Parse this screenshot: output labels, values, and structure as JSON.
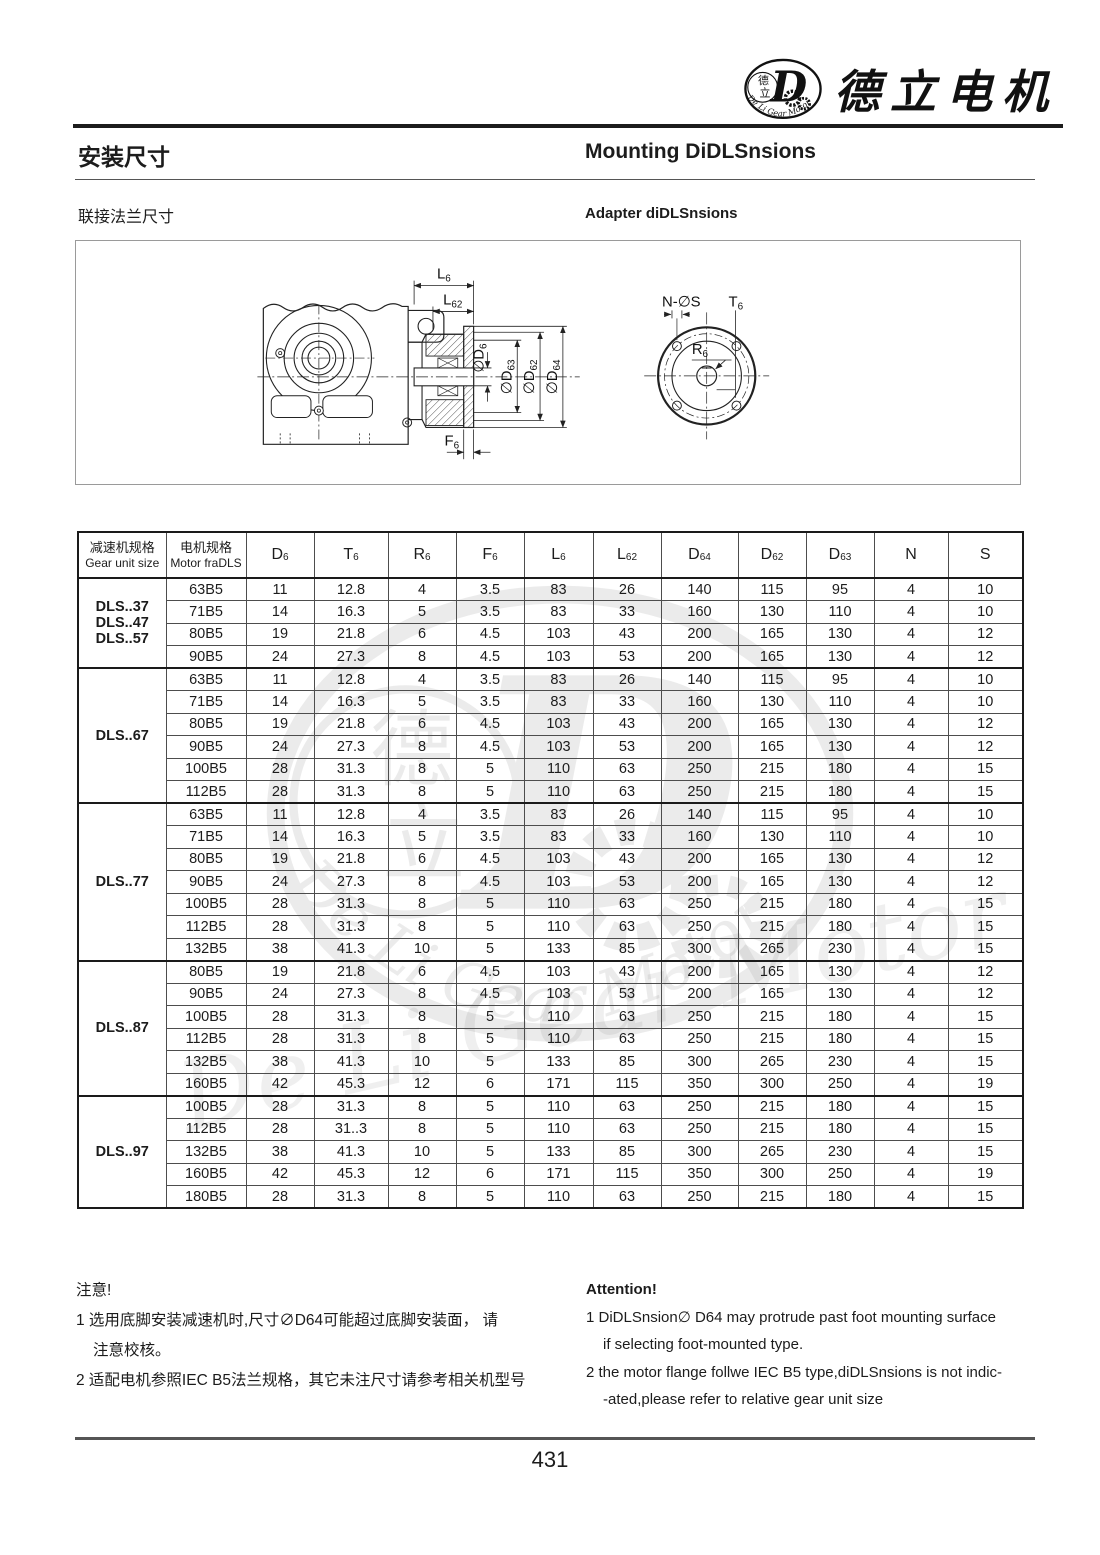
{
  "page": {
    "brand_name": "德立电机",
    "logo": {
      "char_top": "德",
      "char_bottom": "立",
      "letter": "D",
      "ring_text": "De Li Gear Motor"
    },
    "title_cn": "安装尺寸",
    "title_en": "Mounting DiDLSnsions",
    "subtitle_cn": "联接法兰尺寸",
    "subtitle_en": "Adapter diDLSnsions",
    "page_number": "431"
  },
  "drawing": {
    "side_view": {
      "l6": {
        "base": "L",
        "sub": "6"
      },
      "l62": {
        "base": "L",
        "sub": "62"
      },
      "d6": {
        "base": "∅D",
        "sub": "6"
      },
      "d63": {
        "base": "∅D",
        "sub": "63"
      },
      "d62": {
        "base": "∅D",
        "sub": "62"
      },
      "d64": {
        "base": "∅D",
        "sub": "64"
      },
      "f6": {
        "base": "F",
        "sub": "6"
      }
    },
    "front_view": {
      "n_os": {
        "base": "N-∅S",
        "sub": ""
      },
      "t6": {
        "base": "T",
        "sub": "6"
      },
      "r6": {
        "base": "R",
        "sub": "6"
      }
    }
  },
  "table": {
    "col1_header": {
      "cn": "减速机规格",
      "en": "Gear unit size"
    },
    "col2_header": {
      "cn": "电机规格",
      "en": "Motor fraDLS"
    },
    "dim_headers": [
      {
        "base": "D",
        "sub": "6"
      },
      {
        "base": "T",
        "sub": "6"
      },
      {
        "base": "R",
        "sub": "6"
      },
      {
        "base": "F",
        "sub": "6"
      },
      {
        "base": "L",
        "sub": "6"
      },
      {
        "base": "L",
        "sub": "62"
      },
      {
        "base": "D",
        "sub": "64"
      },
      {
        "base": "D",
        "sub": "62"
      },
      {
        "base": "D",
        "sub": "63"
      },
      {
        "base": "N",
        "sub": ""
      },
      {
        "base": "S",
        "sub": ""
      }
    ],
    "groups": [
      {
        "label": [
          "DLS..37",
          "DLS..47",
          "DLS..57"
        ],
        "rows": [
          [
            "63B5",
            "11",
            "12.8",
            "4",
            "3.5",
            "83",
            "26",
            "140",
            "115",
            "95",
            "4",
            "10"
          ],
          [
            "71B5",
            "14",
            "16.3",
            "5",
            "3.5",
            "83",
            "33",
            "160",
            "130",
            "110",
            "4",
            "10"
          ],
          [
            "80B5",
            "19",
            "21.8",
            "6",
            "4.5",
            "103",
            "43",
            "200",
            "165",
            "130",
            "4",
            "12"
          ],
          [
            "90B5",
            "24",
            "27.3",
            "8",
            "4.5",
            "103",
            "53",
            "200",
            "165",
            "130",
            "4",
            "12"
          ]
        ]
      },
      {
        "label": [
          "DLS..67"
        ],
        "rows": [
          [
            "63B5",
            "11",
            "12.8",
            "4",
            "3.5",
            "83",
            "26",
            "140",
            "115",
            "95",
            "4",
            "10"
          ],
          [
            "71B5",
            "14",
            "16.3",
            "5",
            "3.5",
            "83",
            "33",
            "160",
            "130",
            "110",
            "4",
            "10"
          ],
          [
            "80B5",
            "19",
            "21.8",
            "6",
            "4.5",
            "103",
            "43",
            "200",
            "165",
            "130",
            "4",
            "12"
          ],
          [
            "90B5",
            "24",
            "27.3",
            "8",
            "4.5",
            "103",
            "53",
            "200",
            "165",
            "130",
            "4",
            "12"
          ],
          [
            "100B5",
            "28",
            "31.3",
            "8",
            "5",
            "110",
            "63",
            "250",
            "215",
            "180",
            "4",
            "15"
          ],
          [
            "112B5",
            "28",
            "31.3",
            "8",
            "5",
            "110",
            "63",
            "250",
            "215",
            "180",
            "4",
            "15"
          ]
        ]
      },
      {
        "label": [
          "DLS..77"
        ],
        "rows": [
          [
            "63B5",
            "11",
            "12.8",
            "4",
            "3.5",
            "83",
            "26",
            "140",
            "115",
            "95",
            "4",
            "10"
          ],
          [
            "71B5",
            "14",
            "16.3",
            "5",
            "3.5",
            "83",
            "33",
            "160",
            "130",
            "110",
            "4",
            "10"
          ],
          [
            "80B5",
            "19",
            "21.8",
            "6",
            "4.5",
            "103",
            "43",
            "200",
            "165",
            "130",
            "4",
            "12"
          ],
          [
            "90B5",
            "24",
            "27.3",
            "8",
            "4.5",
            "103",
            "53",
            "200",
            "165",
            "130",
            "4",
            "12"
          ],
          [
            "100B5",
            "28",
            "31.3",
            "8",
            "5",
            "110",
            "63",
            "250",
            "215",
            "180",
            "4",
            "15"
          ],
          [
            "112B5",
            "28",
            "31.3",
            "8",
            "5",
            "110",
            "63",
            "250",
            "215",
            "180",
            "4",
            "15"
          ],
          [
            "132B5",
            "38",
            "41.3",
            "10",
            "5",
            "133",
            "85",
            "300",
            "265",
            "230",
            "4",
            "15"
          ]
        ]
      },
      {
        "label": [
          "DLS..87"
        ],
        "rows": [
          [
            "80B5",
            "19",
            "21.8",
            "6",
            "4.5",
            "103",
            "43",
            "200",
            "165",
            "130",
            "4",
            "12"
          ],
          [
            "90B5",
            "24",
            "27.3",
            "8",
            "4.5",
            "103",
            "53",
            "200",
            "165",
            "130",
            "4",
            "12"
          ],
          [
            "100B5",
            "28",
            "31.3",
            "8",
            "5",
            "110",
            "63",
            "250",
            "215",
            "180",
            "4",
            "15"
          ],
          [
            "112B5",
            "28",
            "31.3",
            "8",
            "5",
            "110",
            "63",
            "250",
            "215",
            "180",
            "4",
            "15"
          ],
          [
            "132B5",
            "38",
            "41.3",
            "10",
            "5",
            "133",
            "85",
            "300",
            "265",
            "230",
            "4",
            "15"
          ],
          [
            "160B5",
            "42",
            "45.3",
            "12",
            "6",
            "171",
            "115",
            "350",
            "300",
            "250",
            "4",
            "19"
          ]
        ]
      },
      {
        "label": [
          "DLS..97"
        ],
        "rows": [
          [
            "100B5",
            "28",
            "31.3",
            "8",
            "5",
            "110",
            "63",
            "250",
            "215",
            "180",
            "4",
            "15"
          ],
          [
            "112B5",
            "28",
            "31..3",
            "8",
            "5",
            "110",
            "63",
            "250",
            "215",
            "180",
            "4",
            "15"
          ],
          [
            "132B5",
            "38",
            "41.3",
            "10",
            "5",
            "133",
            "85",
            "300",
            "265",
            "230",
            "4",
            "15"
          ],
          [
            "160B5",
            "42",
            "45.3",
            "12",
            "6",
            "171",
            "115",
            "350",
            "300",
            "250",
            "4",
            "19"
          ],
          [
            "180B5",
            "28",
            "31.3",
            "8",
            "5",
            "110",
            "63",
            "250",
            "215",
            "180",
            "4",
            "15"
          ]
        ]
      }
    ]
  },
  "notes": {
    "cn": {
      "heading": "注意!",
      "lines": [
        "1 选用底脚安装减速机时,尺寸∅D64可能超过底脚安装面， 请",
        "注意校核。",
        "2 适配电机参照IEC B5法兰规格，其它未注尺寸请参考相关机型号"
      ]
    },
    "en": {
      "heading": "Attention!",
      "lines": [
        "1 DiDLSnsion∅  D64 may protrude past foot mounting surface",
        "if selecting foot-mounted type.",
        "2 the motor flange follwe IEC B5 type,diDLSnsions is not indic-",
        "-ated,please refer to relative gear unit size"
      ]
    }
  }
}
